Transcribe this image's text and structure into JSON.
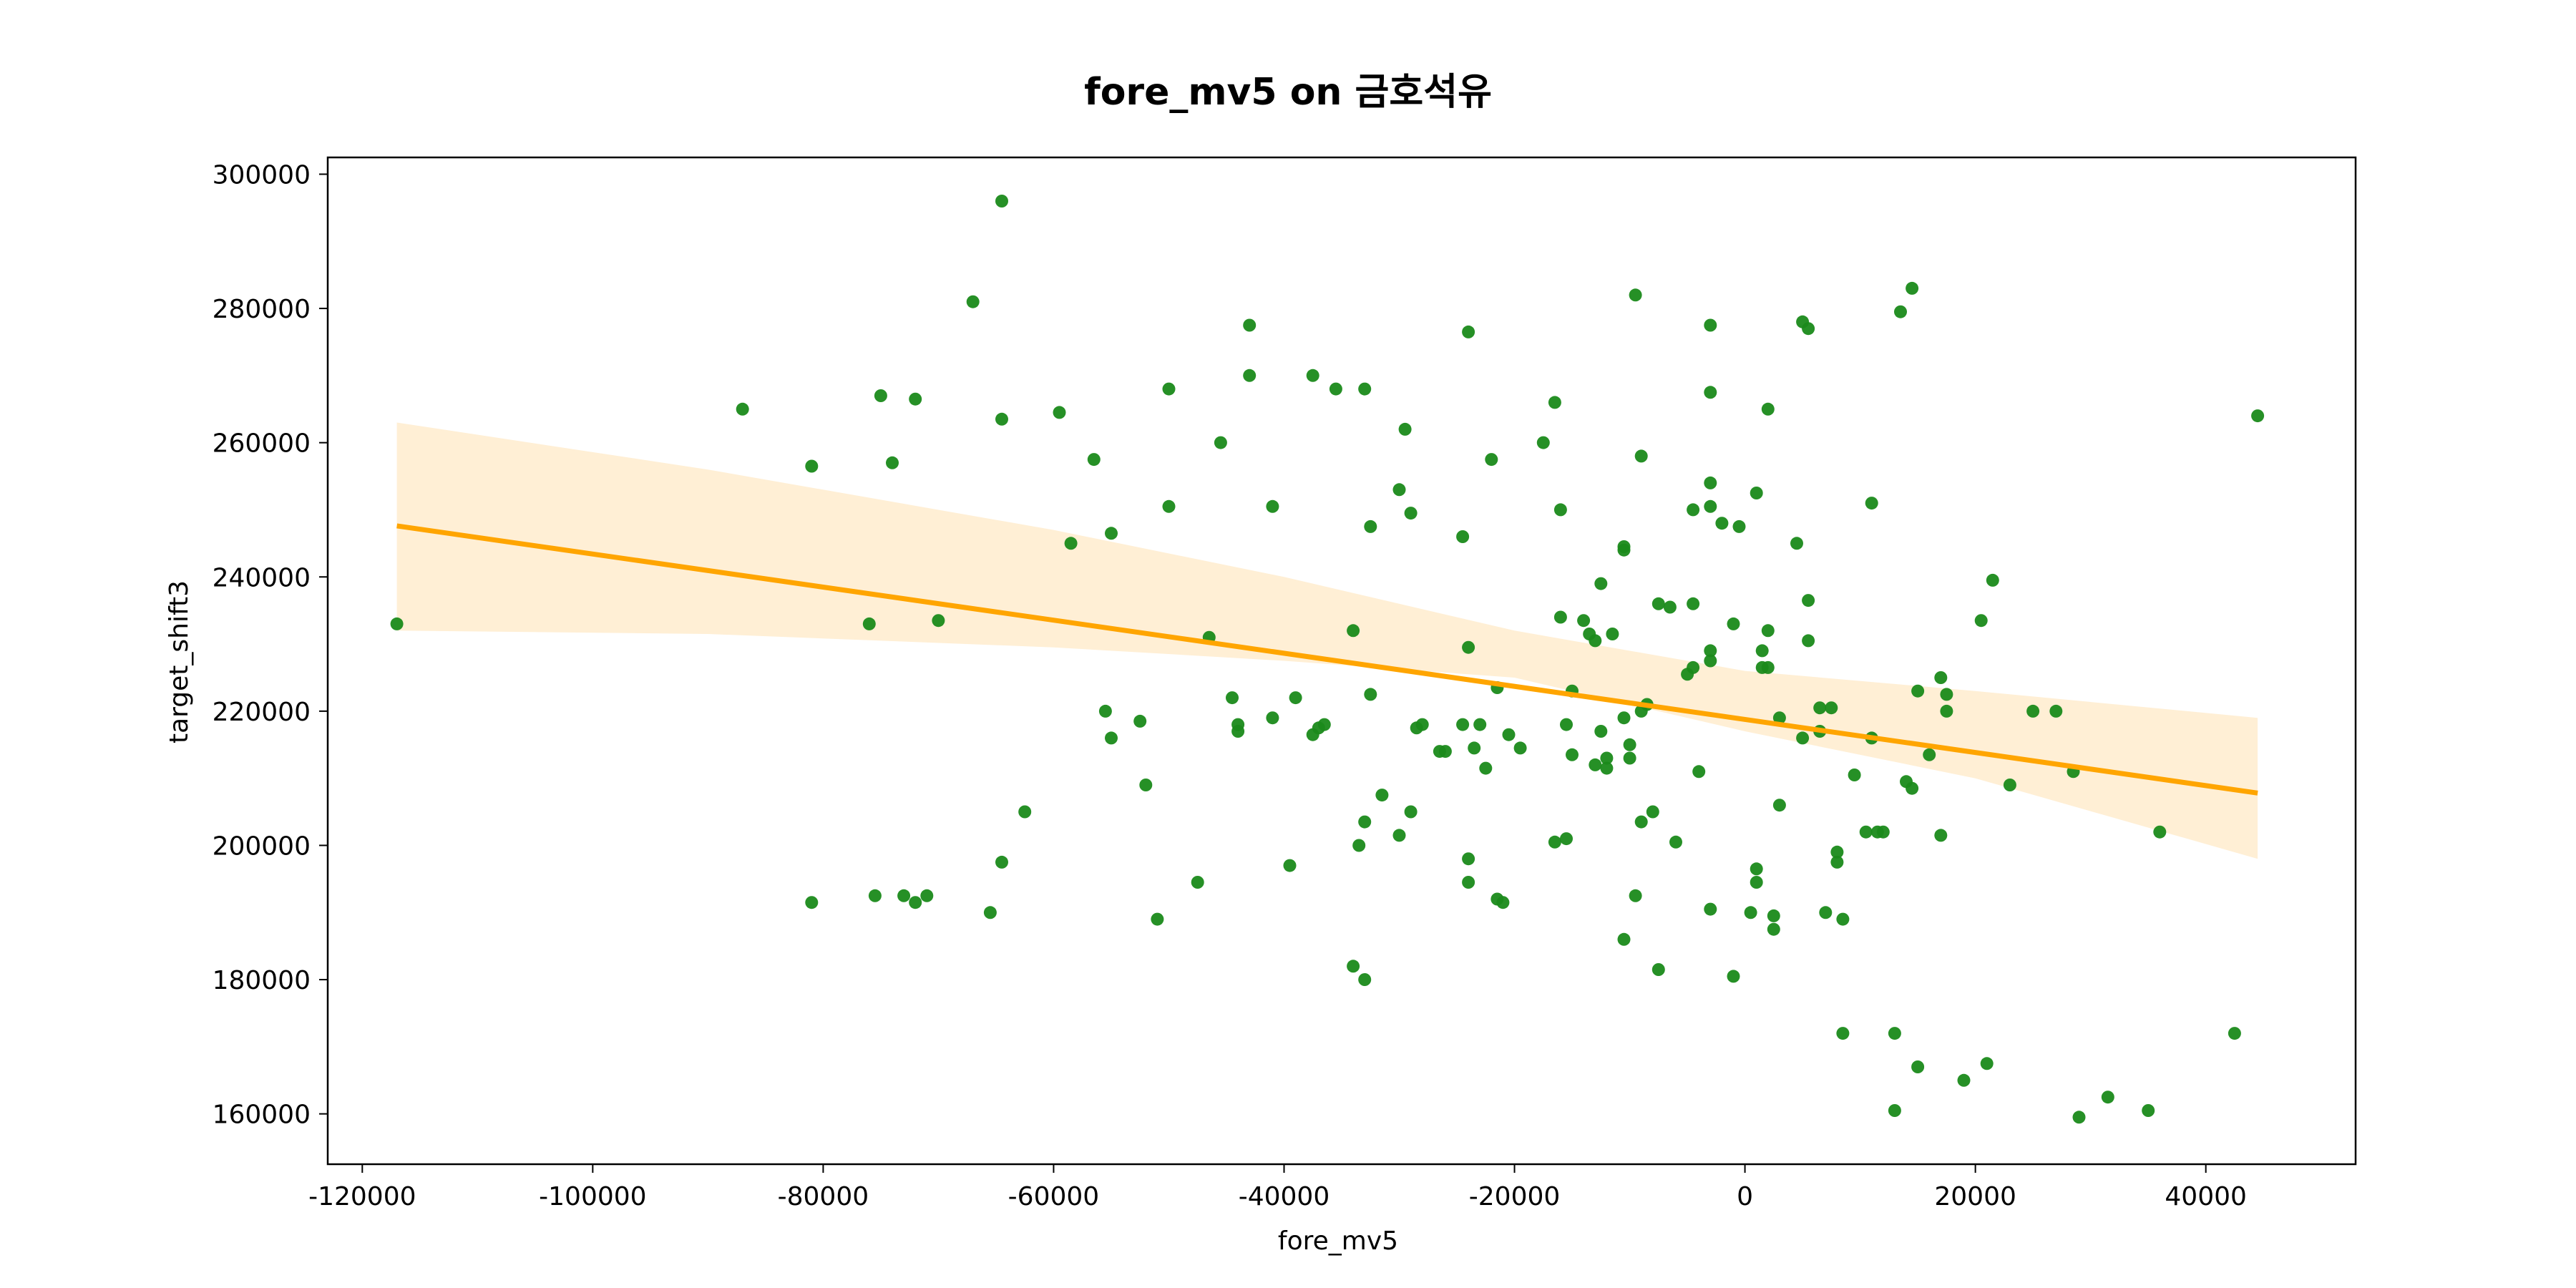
{
  "chart_data": {
    "type": "scatter",
    "title": "fore_mv5 on 금호석유",
    "xlabel": "fore_mv5",
    "ylabel": "target_shift3",
    "xlim": [
      -123000,
      53000
    ],
    "ylim": [
      152500,
      302500
    ],
    "xticks": [
      -120000,
      -100000,
      -80000,
      -60000,
      -40000,
      -20000,
      0,
      20000,
      40000
    ],
    "yticks": [
      160000,
      180000,
      200000,
      220000,
      240000,
      260000,
      280000,
      300000
    ],
    "xtick_labels": [
      "-120000",
      "-100000",
      "-80000",
      "-60000",
      "-40000",
      "-20000",
      "0",
      "20000",
      "40000"
    ],
    "ytick_labels": [
      "160000",
      "180000",
      "200000",
      "220000",
      "240000",
      "260000",
      "280000",
      "300000"
    ],
    "grid": false,
    "colors": {
      "points": "#1a8a1a",
      "regression_line": "#FFA500",
      "confidence_band": "#FFEFD5"
    },
    "regression": {
      "x": [
        -117000,
        44500
      ],
      "y": [
        247600,
        207800
      ]
    },
    "confidence_band": {
      "x": [
        -117000,
        -90000,
        -60000,
        -40000,
        -20000,
        0,
        20000,
        44500
      ],
      "upper": [
        263000,
        256000,
        247000,
        240000,
        232000,
        226000,
        223000,
        219000
      ],
      "lower": [
        232000,
        231500,
        229500,
        227500,
        225000,
        217000,
        210000,
        198000
      ]
    },
    "points": [
      [
        -117000,
        233000
      ],
      [
        -87000,
        265000
      ],
      [
        -81000,
        256500
      ],
      [
        -81000,
        191500
      ],
      [
        -76000,
        233000
      ],
      [
        -75500,
        192500
      ],
      [
        -75000,
        267000
      ],
      [
        -74000,
        257000
      ],
      [
        -73000,
        192500
      ],
      [
        -72000,
        266500
      ],
      [
        -72000,
        191500
      ],
      [
        -71000,
        192500
      ],
      [
        -70000,
        233500
      ],
      [
        -67000,
        281000
      ],
      [
        -65500,
        190000
      ],
      [
        -64500,
        296000
      ],
      [
        -64500,
        263500
      ],
      [
        -64500,
        197500
      ],
      [
        -62500,
        205000
      ],
      [
        -59500,
        264500
      ],
      [
        -58500,
        245000
      ],
      [
        -56500,
        257500
      ],
      [
        -55500,
        220000
      ],
      [
        -55000,
        216000
      ],
      [
        -55000,
        246500
      ],
      [
        -52500,
        218500
      ],
      [
        -52000,
        209000
      ],
      [
        -51000,
        189000
      ],
      [
        -50000,
        268000
      ],
      [
        -50000,
        250500
      ],
      [
        -47500,
        194500
      ],
      [
        -46500,
        231000
      ],
      [
        -45500,
        260000
      ],
      [
        -44500,
        222000
      ],
      [
        -44000,
        217000
      ],
      [
        -44000,
        218000
      ],
      [
        -43000,
        270000
      ],
      [
        -43000,
        277500
      ],
      [
        -41000,
        250500
      ],
      [
        -41000,
        219000
      ],
      [
        -39500,
        197000
      ],
      [
        -39000,
        222000
      ],
      [
        -37500,
        270000
      ],
      [
        -37500,
        216500
      ],
      [
        -37000,
        217500
      ],
      [
        -36500,
        218000
      ],
      [
        -35500,
        268000
      ],
      [
        -34000,
        232000
      ],
      [
        -34000,
        182000
      ],
      [
        -33500,
        200000
      ],
      [
        -33000,
        268000
      ],
      [
        -33000,
        203500
      ],
      [
        -33000,
        180000
      ],
      [
        -32500,
        222500
      ],
      [
        -32500,
        247500
      ],
      [
        -31500,
        207500
      ],
      [
        -30000,
        253000
      ],
      [
        -30000,
        201500
      ],
      [
        -29500,
        262000
      ],
      [
        -29000,
        249500
      ],
      [
        -29000,
        205000
      ],
      [
        -28500,
        217500
      ],
      [
        -28000,
        218000
      ],
      [
        -26500,
        214000
      ],
      [
        -26000,
        214000
      ],
      [
        -24500,
        246000
      ],
      [
        -24500,
        218000
      ],
      [
        -24000,
        276500
      ],
      [
        -24000,
        229500
      ],
      [
        -24000,
        198000
      ],
      [
        -24000,
        194500
      ],
      [
        -23500,
        214500
      ],
      [
        -23000,
        218000
      ],
      [
        -22500,
        211500
      ],
      [
        -22000,
        257500
      ],
      [
        -21500,
        223500
      ],
      [
        -21500,
        192000
      ],
      [
        -21000,
        191500
      ],
      [
        -20500,
        216500
      ],
      [
        -19500,
        214500
      ],
      [
        -17500,
        260000
      ],
      [
        -16500,
        266000
      ],
      [
        -16500,
        200500
      ],
      [
        -16000,
        250000
      ],
      [
        -16000,
        234000
      ],
      [
        -15500,
        218000
      ],
      [
        -15500,
        201000
      ],
      [
        -15000,
        223000
      ],
      [
        -15000,
        213500
      ],
      [
        -14000,
        233500
      ],
      [
        -13500,
        231500
      ],
      [
        -13000,
        230500
      ],
      [
        -13000,
        212000
      ],
      [
        -12500,
        217000
      ],
      [
        -12500,
        239000
      ],
      [
        -12000,
        213000
      ],
      [
        -12000,
        211500
      ],
      [
        -11500,
        231500
      ],
      [
        -10500,
        244500
      ],
      [
        -10500,
        244000
      ],
      [
        -10500,
        219000
      ],
      [
        -10500,
        186000
      ],
      [
        -10000,
        215000
      ],
      [
        -10000,
        213000
      ],
      [
        -9500,
        282000
      ],
      [
        -9500,
        192500
      ],
      [
        -9000,
        258000
      ],
      [
        -9000,
        220000
      ],
      [
        -9000,
        203500
      ],
      [
        -8500,
        221000
      ],
      [
        -8000,
        205000
      ],
      [
        -7500,
        236000
      ],
      [
        -7500,
        181500
      ],
      [
        -6500,
        235500
      ],
      [
        -6000,
        200500
      ],
      [
        -5000,
        225500
      ],
      [
        -4500,
        236000
      ],
      [
        -4500,
        250000
      ],
      [
        -4500,
        226500
      ],
      [
        -4000,
        211000
      ],
      [
        -3000,
        229000
      ],
      [
        -3000,
        227500
      ],
      [
        -3000,
        254000
      ],
      [
        -3000,
        250500
      ],
      [
        -3000,
        267500
      ],
      [
        -3000,
        277500
      ],
      [
        -3000,
        190500
      ],
      [
        -2000,
        248000
      ],
      [
        -1000,
        233000
      ],
      [
        -1000,
        180500
      ],
      [
        -500,
        247500
      ],
      [
        500,
        190000
      ],
      [
        1000,
        194500
      ],
      [
        1000,
        252500
      ],
      [
        1000,
        196500
      ],
      [
        1500,
        229000
      ],
      [
        1500,
        226500
      ],
      [
        2000,
        226500
      ],
      [
        2000,
        232000
      ],
      [
        2000,
        265000
      ],
      [
        2500,
        187500
      ],
      [
        2500,
        189500
      ],
      [
        3000,
        206000
      ],
      [
        3000,
        219000
      ],
      [
        4500,
        245000
      ],
      [
        5000,
        278000
      ],
      [
        5000,
        216000
      ],
      [
        5500,
        230500
      ],
      [
        5500,
        236500
      ],
      [
        5500,
        277000
      ],
      [
        6500,
        220500
      ],
      [
        6500,
        217000
      ],
      [
        7000,
        190000
      ],
      [
        7500,
        220500
      ],
      [
        8000,
        197500
      ],
      [
        8000,
        199000
      ],
      [
        8500,
        189000
      ],
      [
        8500,
        172000
      ],
      [
        9500,
        210500
      ],
      [
        10500,
        202000
      ],
      [
        11000,
        251000
      ],
      [
        11000,
        216000
      ],
      [
        11500,
        202000
      ],
      [
        12000,
        202000
      ],
      [
        13000,
        172000
      ],
      [
        13000,
        160500
      ],
      [
        13500,
        279500
      ],
      [
        14000,
        209500
      ],
      [
        14500,
        283000
      ],
      [
        14500,
        208500
      ],
      [
        15000,
        223000
      ],
      [
        15000,
        167000
      ],
      [
        16000,
        213500
      ],
      [
        17000,
        225000
      ],
      [
        17000,
        201500
      ],
      [
        17500,
        222500
      ],
      [
        17500,
        220000
      ],
      [
        19000,
        165000
      ],
      [
        20500,
        233500
      ],
      [
        21000,
        167500
      ],
      [
        21500,
        239500
      ],
      [
        23000,
        209000
      ],
      [
        25000,
        220000
      ],
      [
        27000,
        220000
      ],
      [
        28500,
        211000
      ],
      [
        29000,
        159500
      ],
      [
        31500,
        162500
      ],
      [
        35000,
        160500
      ],
      [
        36000,
        202000
      ],
      [
        42500,
        172000
      ],
      [
        44500,
        264000
      ]
    ]
  }
}
